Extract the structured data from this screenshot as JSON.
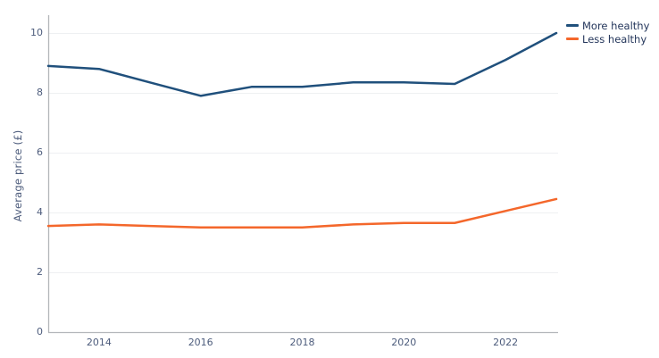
{
  "chart_data": {
    "type": "line",
    "title": "",
    "ylabel": "Average price (£)",
    "xlabel": "",
    "x": [
      2013,
      2014,
      2015,
      2016,
      2017,
      2018,
      2019,
      2020,
      2021,
      2022,
      2023
    ],
    "series": [
      {
        "name": "More healthy",
        "color": "#20507c",
        "values": [
          8.9,
          8.8,
          8.35,
          7.9,
          8.2,
          8.2,
          8.35,
          8.35,
          8.3,
          9.1,
          10.0
        ]
      },
      {
        "name": "Less healthy",
        "color": "#f4672b",
        "values": [
          3.55,
          3.6,
          3.55,
          3.5,
          3.5,
          3.5,
          3.6,
          3.65,
          3.65,
          4.05,
          4.45
        ]
      }
    ],
    "xlim": [
      2013,
      2023
    ],
    "ylim": [
      0,
      10
    ],
    "yticks": [
      0,
      2,
      4,
      6,
      8,
      10
    ],
    "xticks": [
      2014,
      2016,
      2018,
      2020,
      2022
    ],
    "grid": true,
    "legend_position": "top-right"
  },
  "style": {
    "background": "#ffffff",
    "axis_color": "#b3b6ba",
    "grid_color": "#eef0f2",
    "tick_label_color": "#4d5c7c",
    "legend_text_color": "#24365b"
  }
}
